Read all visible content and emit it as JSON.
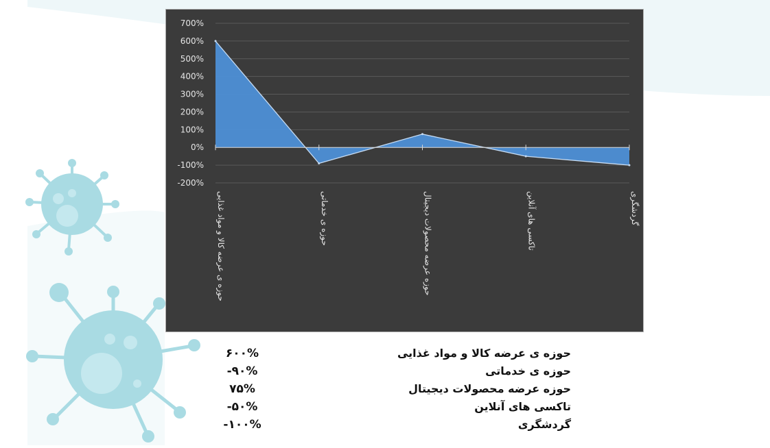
{
  "chart_data": {
    "type": "area",
    "categories": [
      "حوزه ی عرضه کالا و مواد غذایی",
      "حوزه ی خدماتی",
      "حوزه عرضه محصولات دیجیتال",
      "تاکسی های آنلاین",
      "گردشگری"
    ],
    "values": [
      600,
      -90,
      75,
      -50,
      -100
    ],
    "unit": "%",
    "ylim": [
      -200,
      700
    ],
    "yticks": [
      "700%",
      "600%",
      "500%",
      "400%",
      "300%",
      "200%",
      "100%",
      "0%",
      "-100%",
      "-200%"
    ],
    "grid": true,
    "title": "",
    "xlabel": "",
    "ylabel": "",
    "colors": {
      "area_fill": "#4d8fd6",
      "area_line": "#c7dcf3",
      "background": "#3b3b3b",
      "grid": "#5a5a5a",
      "axis_text": "#e6e6e6"
    }
  },
  "summary": {
    "values": [
      "۶۰۰%",
      "-۹۰%",
      "۷۵%",
      "-۵۰%",
      "-۱۰۰%"
    ],
    "labels": [
      "حوزه ی عرضه کالا و مواد غذایی",
      "حوزه ی خدماتی",
      "حوزه عرضه محصولات دیجیتال",
      "تاکسی های آنلاین",
      "گردشگری"
    ]
  },
  "decor": {
    "virus_color": "#a9dbe3",
    "virus_color_light": "#cdebf0"
  }
}
